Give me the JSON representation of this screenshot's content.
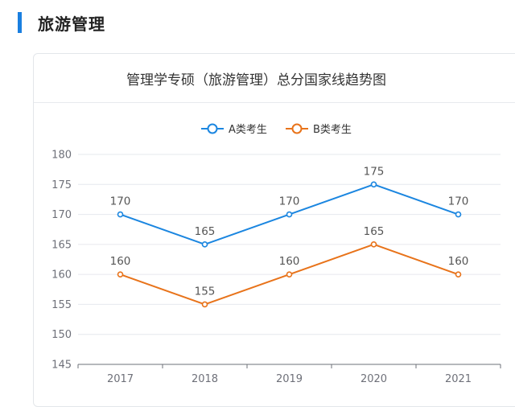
{
  "section": {
    "title": "旅游管理"
  },
  "chart_data": {
    "type": "line",
    "title": "管理学专硕（旅游管理）总分国家线趋势图",
    "categories": [
      "2017",
      "2018",
      "2019",
      "2020",
      "2021"
    ],
    "series": [
      {
        "name": "A类考生",
        "color": "#1b86e0",
        "values": [
          170,
          165,
          170,
          175,
          170
        ]
      },
      {
        "name": "B类考生",
        "color": "#e8731a",
        "values": [
          160,
          155,
          160,
          165,
          160
        ]
      }
    ],
    "ylim": [
      145,
      180
    ],
    "yticks": [
      145,
      150,
      155,
      160,
      165,
      170,
      175,
      180
    ],
    "xlabel": "",
    "ylabel": "",
    "grid": true,
    "legend_position": "top-center",
    "data_labels": true
  }
}
